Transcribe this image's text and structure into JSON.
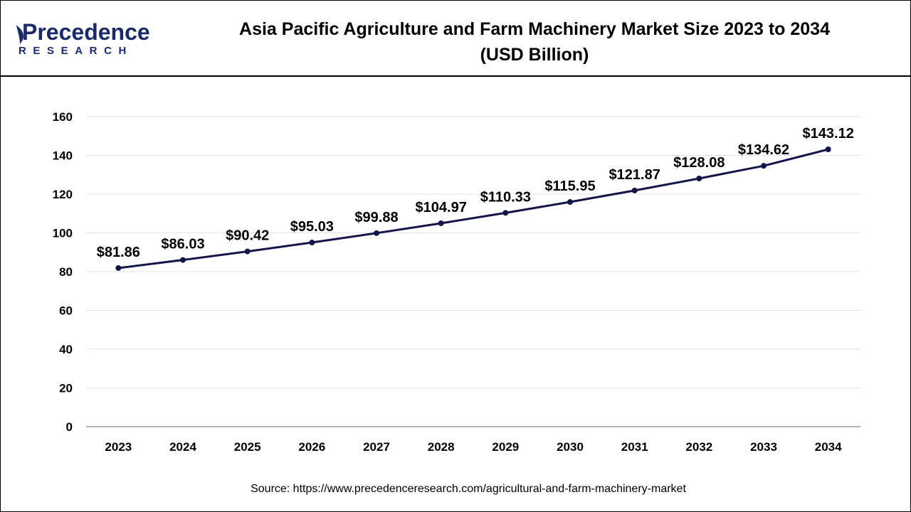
{
  "brand": {
    "name": "Precedence",
    "sub": "RESEARCH",
    "color": "#1b2a6b"
  },
  "title": {
    "line1": "Asia Pacific Agriculture and Farm Machinery Market Size 2023 to 2034",
    "line2": "(USD Billion)"
  },
  "source": "Source: https://www.precedenceresearch.com/agricultural-and-farm-machinery-market",
  "chart_data": {
    "type": "line",
    "categories": [
      "2023",
      "2024",
      "2025",
      "2026",
      "2027",
      "2028",
      "2029",
      "2030",
      "2031",
      "2032",
      "2033",
      "2034"
    ],
    "series": [
      {
        "values": [
          81.86,
          86.03,
          90.42,
          95.03,
          99.88,
          104.97,
          110.33,
          115.95,
          121.87,
          128.08,
          134.62,
          143.12
        ],
        "labels": [
          "$81.86",
          "$86.03",
          "$90.42",
          "$95.03",
          "$99.88",
          "$104.97",
          "$110.33",
          "$115.95",
          "$121.87",
          "$128.08",
          "$134.62",
          "$143.12"
        ],
        "color": "#14154a"
      }
    ],
    "ylim": [
      0,
      160
    ],
    "yticks": [
      0,
      20,
      40,
      60,
      80,
      100,
      120,
      140,
      160
    ],
    "grid": true
  }
}
